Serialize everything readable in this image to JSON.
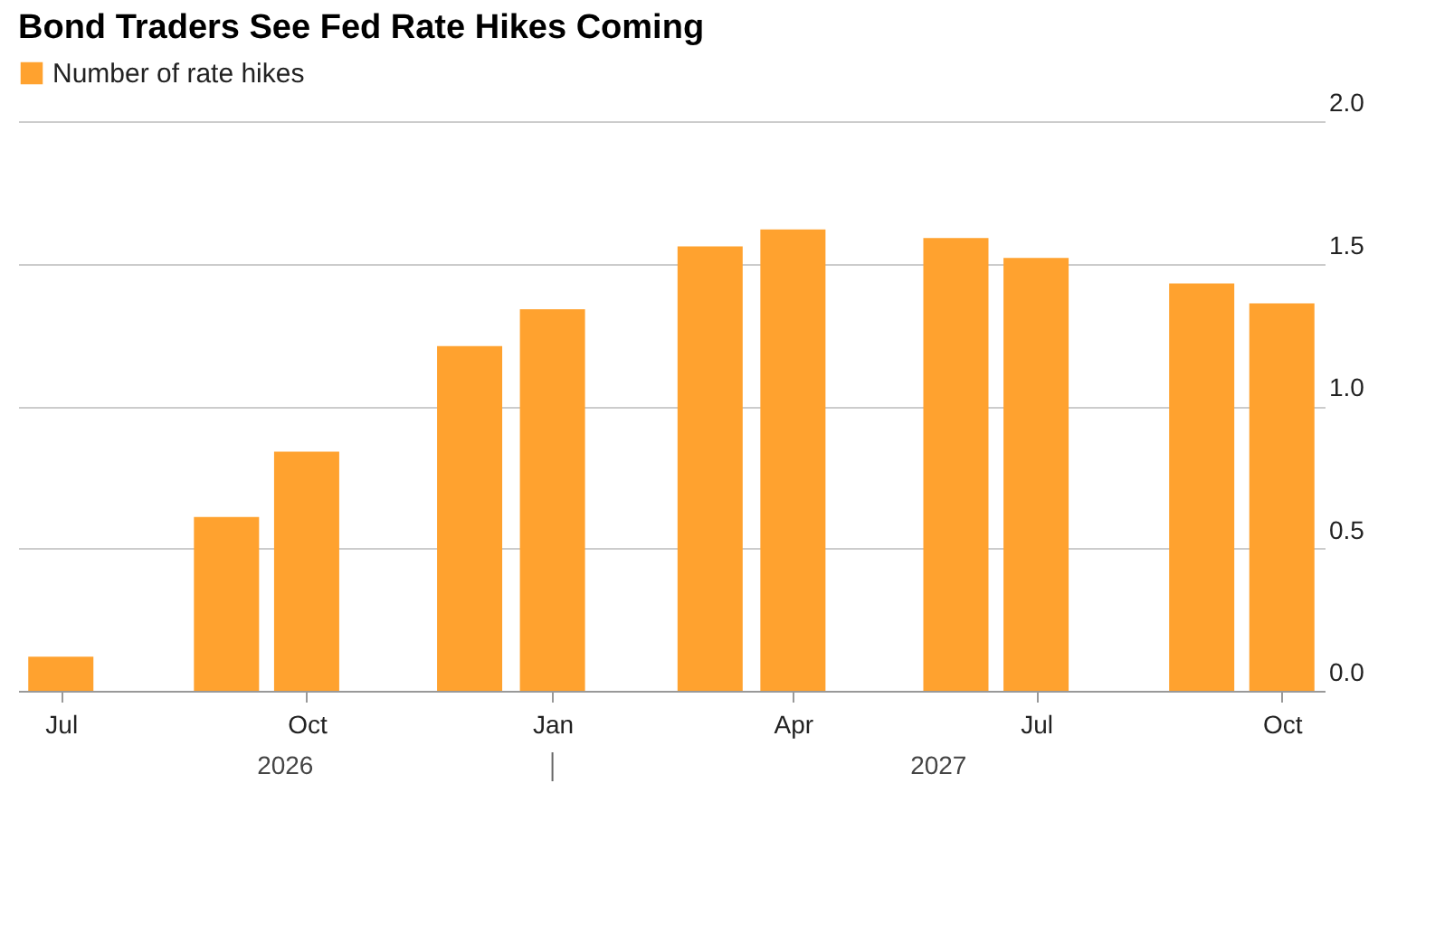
{
  "chart_data": {
    "type": "bar",
    "title": "Bond Traders See Fed Rate Hikes Coming",
    "x": [
      "2026-07",
      "2026-09",
      "2026-10",
      "2026-12",
      "2027-01",
      "2027-03",
      "2027-04",
      "2027-06",
      "2027-07",
      "2027-09",
      "2027-10"
    ],
    "series": [
      {
        "name": "Number of rate hikes",
        "color": "#ffa22f",
        "values": [
          0.12,
          0.61,
          0.84,
          1.21,
          1.34,
          1.56,
          1.62,
          1.59,
          1.52,
          1.43,
          1.36
        ]
      }
    ],
    "xlim": [
      "2026-06-15",
      "2027-10-17"
    ],
    "xticks": [
      {
        "value": "2026-07",
        "label": "Jul"
      },
      {
        "value": "2026-10",
        "label": "Oct"
      },
      {
        "value": "2027-01",
        "label": "Jan"
      },
      {
        "value": "2027-04",
        "label": "Apr"
      },
      {
        "value": "2027-07",
        "label": "Jul"
      },
      {
        "value": "2027-10",
        "label": "Oct"
      }
    ],
    "ylim": [
      0,
      2
    ],
    "yticks": [
      {
        "value": 0,
        "label": "0.0"
      },
      {
        "value": 0.5,
        "label": "0.5"
      },
      {
        "value": 1,
        "label": "1.0"
      },
      {
        "value": 1.5,
        "label": "1.5"
      },
      {
        "value": 2,
        "label": "2.0"
      }
    ],
    "annotations": [
      "2026",
      "2027"
    ],
    "grid": "y",
    "legend": "top left"
  }
}
